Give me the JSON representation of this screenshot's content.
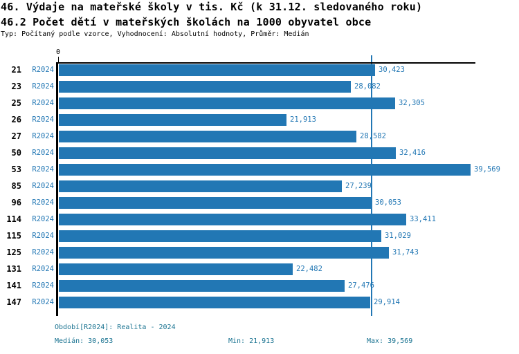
{
  "header": {
    "title_line1": "46. Výdaje na mateřské školy v tis. Kč (k 31.12. sledovaného roku)",
    "title_line2": "46.2 Počet dětí v mateřských školách na 1000 obyvatel obce",
    "subtitle": "Typ: Počítaný podle vzorce, Vyhodnocení: Absolutní hodnoty, Průměr: Medián"
  },
  "chart_data": {
    "type": "bar",
    "orientation": "horizontal",
    "categories": [
      "21",
      "23",
      "25",
      "26",
      "27",
      "50",
      "53",
      "85",
      "96",
      "114",
      "115",
      "125",
      "131",
      "141",
      "147"
    ],
    "series_label": "R2024",
    "values": [
      30423,
      28082,
      32305,
      21913,
      28582,
      32416,
      39569,
      27239,
      30053,
      33411,
      31029,
      31743,
      22482,
      27476,
      29914
    ],
    "value_labels": [
      "30,423",
      "28,082",
      "32,305",
      "21,913",
      "28,582",
      "32,416",
      "39,569",
      "27,239",
      "30,053",
      "33,411",
      "31,029",
      "31,743",
      "22,482",
      "27,476",
      "29,914"
    ],
    "xlim": [
      0,
      40000
    ],
    "x_zero_label": "0",
    "median": 30053,
    "min": 21913,
    "max": 39569,
    "grid": false,
    "legend": false,
    "bar_color": "#2277b4",
    "median_line_color": "#2277b4",
    "axis_color": "#000000"
  },
  "footer": {
    "period": "Období[R2024]: Realita - 2024",
    "median": "Medián: 30,053",
    "min": "Min: 21,913",
    "max": "Max: 39,569",
    "text_color": "#1a7391"
  }
}
